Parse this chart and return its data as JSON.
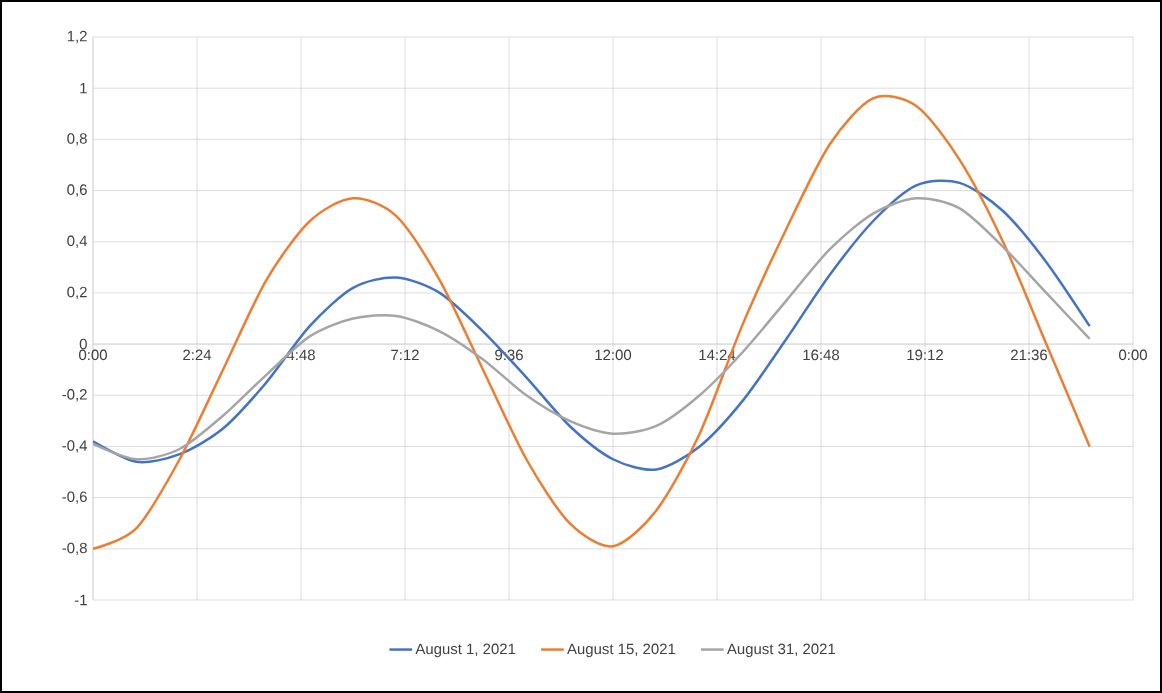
{
  "chart_data": {
    "type": "line",
    "x": [
      0,
      1,
      2,
      3,
      4,
      5,
      6,
      7,
      8,
      9,
      10,
      11,
      12,
      13,
      14,
      15,
      16,
      17,
      18,
      19,
      20,
      21,
      22,
      23
    ],
    "series": [
      {
        "name": "August 1, 2021",
        "color": "#4472c4",
        "values": [
          -0.38,
          -0.46,
          -0.43,
          -0.33,
          -0.15,
          0.07,
          0.22,
          0.26,
          0.2,
          0.05,
          -0.13,
          -0.32,
          -0.45,
          -0.49,
          -0.4,
          -0.22,
          0.02,
          0.27,
          0.48,
          0.62,
          0.63,
          0.52,
          0.32,
          0.07
        ]
      },
      {
        "name": "August 15, 2021",
        "color": "#ed7d31",
        "values": [
          -0.8,
          -0.72,
          -0.45,
          -0.1,
          0.25,
          0.48,
          0.57,
          0.5,
          0.25,
          -0.1,
          -0.45,
          -0.7,
          -0.79,
          -0.65,
          -0.35,
          0.08,
          0.45,
          0.78,
          0.96,
          0.93,
          0.72,
          0.4,
          0.0,
          -0.4
        ]
      },
      {
        "name": "August 31, 2021",
        "color": "#a5a5a5",
        "values": [
          -0.39,
          -0.45,
          -0.41,
          -0.28,
          -0.12,
          0.03,
          0.1,
          0.11,
          0.05,
          -0.06,
          -0.2,
          -0.3,
          -0.35,
          -0.32,
          -0.2,
          -0.03,
          0.17,
          0.37,
          0.51,
          0.57,
          0.53,
          0.38,
          0.2,
          0.02
        ]
      }
    ],
    "xlim": [
      0,
      24
    ],
    "xticks": [
      {
        "value": 0,
        "label": "0:00"
      },
      {
        "value": 2.4,
        "label": "2:24"
      },
      {
        "value": 4.8,
        "label": "4:48"
      },
      {
        "value": 7.2,
        "label": "7:12"
      },
      {
        "value": 9.6,
        "label": "9:36"
      },
      {
        "value": 12,
        "label": "12:00"
      },
      {
        "value": 14.4,
        "label": "14:24"
      },
      {
        "value": 16.8,
        "label": "16:48"
      },
      {
        "value": 19.2,
        "label": "19:12"
      },
      {
        "value": 21.6,
        "label": "21:36"
      },
      {
        "value": 24,
        "label": "0:00"
      }
    ],
    "ylim": [
      -1,
      1.2
    ],
    "yticks": [
      {
        "value": -1,
        "label": "-1"
      },
      {
        "value": -0.8,
        "label": "-0,8"
      },
      {
        "value": -0.6,
        "label": "-0,6"
      },
      {
        "value": -0.4,
        "label": "-0,4"
      },
      {
        "value": -0.2,
        "label": "-0,2"
      },
      {
        "value": 0,
        "label": "0"
      },
      {
        "value": 0.2,
        "label": "0,2"
      },
      {
        "value": 0.4,
        "label": "0,4"
      },
      {
        "value": 0.6,
        "label": "0,6"
      },
      {
        "value": 0.8,
        "label": "0,8"
      },
      {
        "value": 1,
        "label": "1"
      },
      {
        "value": 1.2,
        "label": "1,2"
      }
    ],
    "grid": true,
    "legend": "bottom"
  }
}
